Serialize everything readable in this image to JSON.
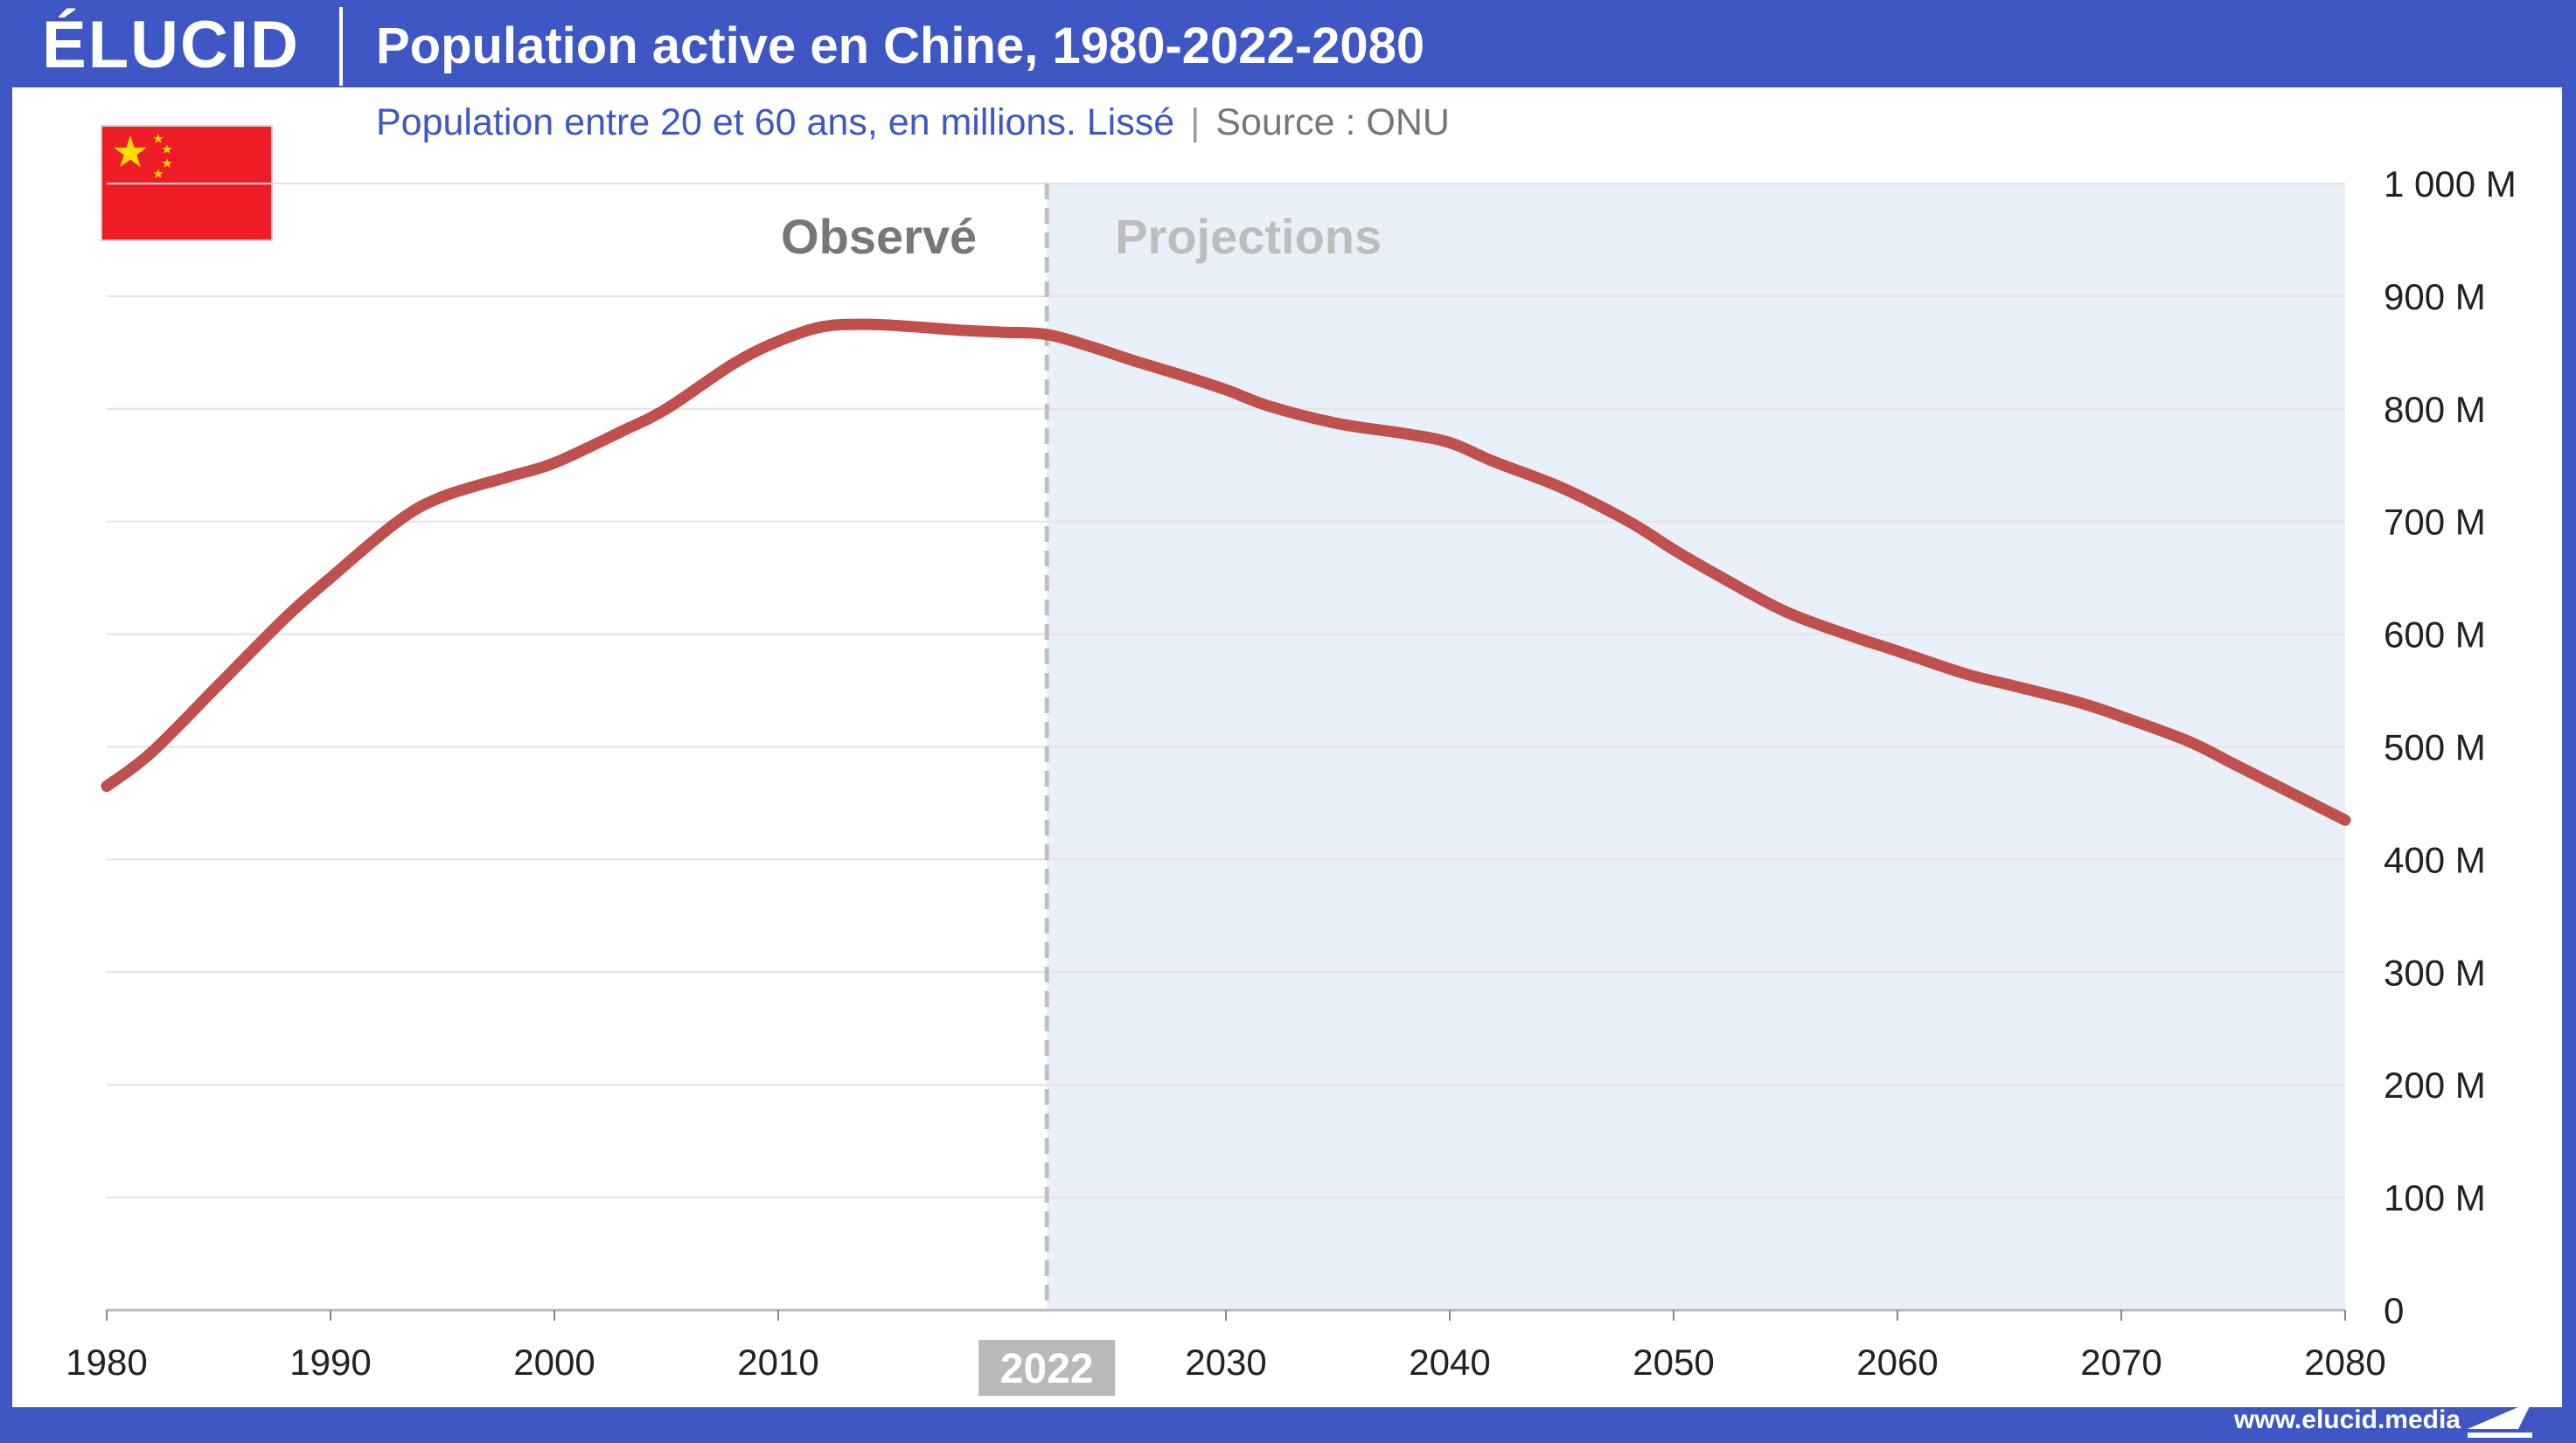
{
  "header": {
    "logo": "ÉLUCID",
    "title": "Population active en Chine, 1980-2022-2080"
  },
  "subtitle": {
    "main": "Population entre 20 et 60 ans, en millions. Lissé",
    "separator": "|",
    "source": "Source : ONU"
  },
  "footer": {
    "url": "www.elucid.media"
  },
  "flag_icon": "china-flag-icon",
  "colors": {
    "brand": "#3f57c5",
    "line": "#c0504d",
    "projection_bg": "#e9f0f9",
    "grid": "#e3e3e3",
    "divider": "#bfbfbf"
  },
  "chart_data": {
    "type": "line",
    "title": "Population active en Chine, 1980-2022-2080",
    "subtitle": "Population entre 20 et 60 ans, en millions. Lissé",
    "xlabel": "",
    "ylabel": "",
    "xlim": [
      1980,
      2080
    ],
    "ylim": [
      0,
      1000
    ],
    "x_ticks": [
      1980,
      1990,
      2000,
      2010,
      2030,
      2040,
      2050,
      2060,
      2070,
      2080
    ],
    "y_ticks": [
      0,
      100,
      200,
      300,
      400,
      500,
      600,
      700,
      800,
      900,
      1000
    ],
    "y_tick_labels": [
      "0",
      "100 M",
      "200 M",
      "300 M",
      "400 M",
      "500 M",
      "600 M",
      "700 M",
      "800 M",
      "900 M",
      "1 000 M"
    ],
    "y_axis_side": "right",
    "grid": true,
    "divider": {
      "x": 2022,
      "label": "2022"
    },
    "regions": [
      {
        "label": "Observé",
        "from": 1980,
        "to": 2022
      },
      {
        "label": "Projections",
        "from": 2022,
        "to": 2080
      }
    ],
    "series": [
      {
        "x": [
          1980,
          1982,
          1985,
          1988,
          1990,
          1993,
          1995,
          1998,
          2000,
          2003,
          2005,
          2008,
          2010,
          2012,
          2014,
          2016,
          2018,
          2020,
          2022,
          2024,
          2026,
          2028,
          2030,
          2032,
          2035,
          2038,
          2040,
          2042,
          2045,
          2048,
          2050,
          2052,
          2055,
          2058,
          2060,
          2063,
          2065,
          2068,
          2070,
          2073,
          2075,
          2078,
          2080
        ],
        "values": [
          465,
          495,
          555,
          615,
          650,
          700,
          722,
          740,
          752,
          780,
          800,
          840,
          860,
          873,
          875,
          873,
          870,
          868,
          866,
          855,
          842,
          830,
          817,
          802,
          787,
          778,
          770,
          753,
          730,
          700,
          675,
          652,
          620,
          598,
          585,
          565,
          555,
          540,
          527,
          505,
          485,
          455,
          435
        ]
      }
    ]
  }
}
